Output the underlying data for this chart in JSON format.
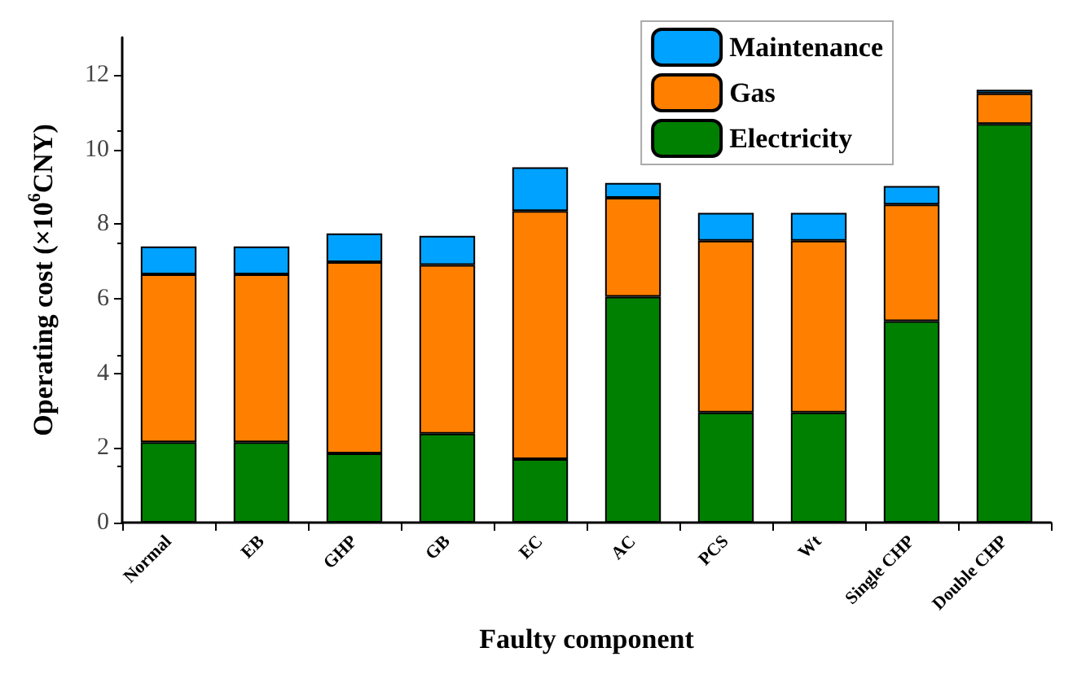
{
  "chart_data": {
    "type": "bar",
    "stacked": true,
    "xlabel": "Faulty component",
    "ylabel": "Operating cost (×10$^{6}$CNY)",
    "categories": [
      "Normal",
      "EB",
      "GHP",
      "GB",
      "EC",
      "AC",
      "PCS",
      "Wt",
      "Single CHP",
      "Double CHP"
    ],
    "series": [
      {
        "name": "Electricity",
        "color": "#008000",
        "values": [
          2.15,
          2.15,
          1.85,
          2.38,
          1.7,
          6.05,
          2.95,
          2.95,
          5.4,
          10.68
        ]
      },
      {
        "name": "Gas",
        "color": "#ff8000",
        "values": [
          4.5,
          4.5,
          5.13,
          4.52,
          6.65,
          2.65,
          4.6,
          4.6,
          3.12,
          0.82
        ]
      },
      {
        "name": "Maintenance",
        "color": "#00a2ff",
        "values": [
          0.75,
          0.75,
          0.77,
          0.78,
          1.17,
          0.4,
          0.75,
          0.75,
          0.5,
          0.1
        ]
      }
    ],
    "ylim": [
      0,
      13
    ],
    "yticks": [
      0,
      2,
      4,
      6,
      8,
      10,
      12
    ],
    "grid": false,
    "legend": "top right"
  }
}
